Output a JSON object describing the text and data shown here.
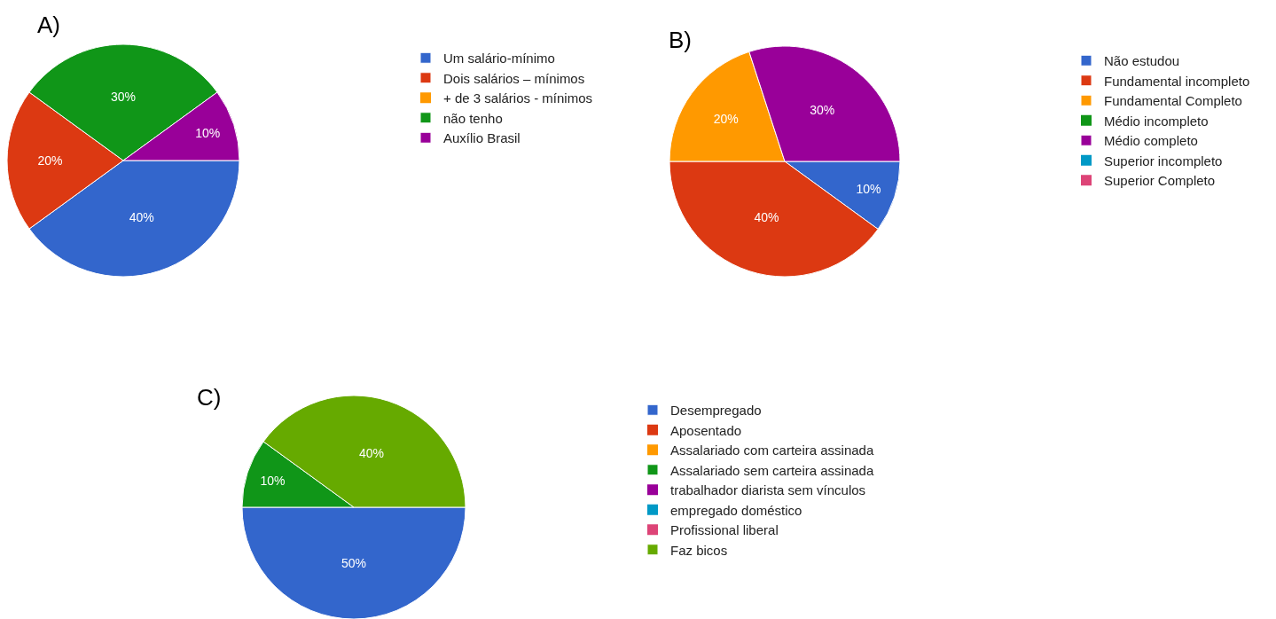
{
  "chart_data": [
    {
      "type": "pie",
      "title": "A)",
      "categories": [
        "Um salário-mínimo",
        "Dois salários – mínimos",
        "+ de 3 salários - mínimos",
        "não tenho",
        "Auxílio Brasil"
      ],
      "values": [
        40,
        20,
        0,
        30,
        10
      ],
      "value_labels": [
        "40%",
        "20%",
        null,
        "30%",
        "10%"
      ],
      "colors": [
        "#3366cc",
        "#dc3912",
        "#ff9900",
        "#109618",
        "#990099"
      ],
      "legend": "right"
    },
    {
      "type": "pie",
      "title": "B)",
      "categories": [
        "Não estudou",
        "Fundamental incompleto",
        "Fundamental Completo",
        "Médio incompleto",
        "Médio completo",
        "Superior incompleto",
        "Superior Completo"
      ],
      "values": [
        10,
        40,
        20,
        0,
        30,
        0,
        0
      ],
      "value_labels": [
        "10%",
        "40%",
        "20%",
        null,
        "30%",
        null,
        null
      ],
      "colors": [
        "#3366cc",
        "#dc3912",
        "#ff9900",
        "#109618",
        "#990099",
        "#0099c6",
        "#dd4477"
      ],
      "legend": "right"
    },
    {
      "type": "pie",
      "title": "C)",
      "categories": [
        "Desempregado",
        "Aposentado",
        "Assalariado com carteira assinada",
        "Assalariado sem carteira assinada",
        "trabalhador diarista sem vínculos",
        "empregado doméstico",
        "Profissional liberal",
        "Faz bicos"
      ],
      "values": [
        50,
        0,
        0,
        10,
        0,
        0,
        0,
        40
      ],
      "value_labels": [
        "50%",
        null,
        null,
        "10%",
        null,
        null,
        null,
        "40%"
      ],
      "colors": [
        "#3366cc",
        "#dc3912",
        "#ff9900",
        "#109618",
        "#990099",
        "#0099c6",
        "#dd4477",
        "#66aa00"
      ],
      "legend": "right"
    }
  ]
}
